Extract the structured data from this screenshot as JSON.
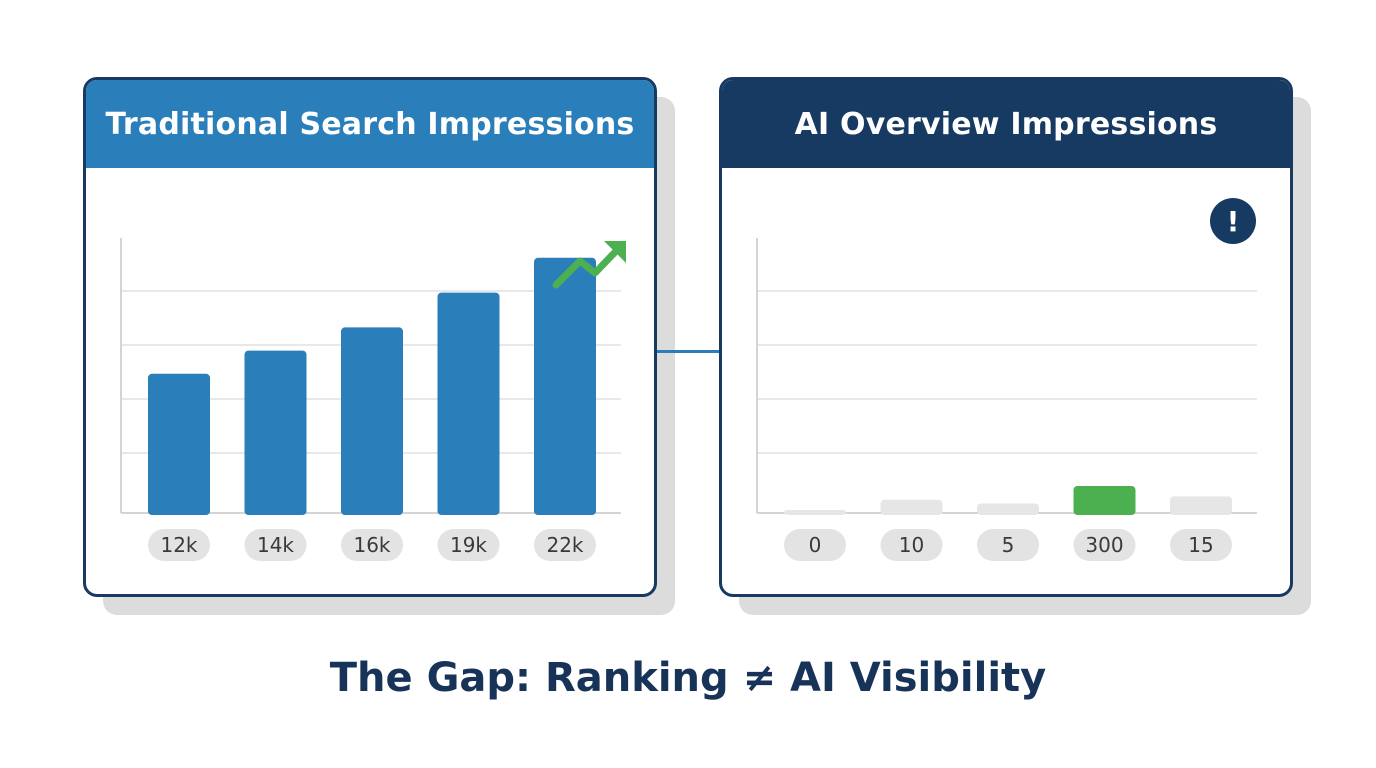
{
  "caption": "The Gap: Ranking ≠ AI Visibility",
  "colors": {
    "blue": "#2a7fba",
    "navy": "#173a63",
    "green": "#4caf50",
    "gray_bar": "#e6e6e6",
    "pill": "#e3e3e3",
    "grid": "#e0e0e0"
  },
  "icons": {
    "left_panel": "trend-up-arrow-icon",
    "right_panel": "exclamation-alert-icon"
  },
  "chart_data": [
    {
      "type": "bar",
      "title": "Traditional Search Impressions",
      "categories": [
        "12k",
        "14k",
        "16k",
        "19k",
        "22k"
      ],
      "values": [
        12,
        14,
        16,
        19,
        22
      ],
      "ylim": [
        0,
        25
      ],
      "grid": true,
      "bar_color": "#2a7fba",
      "header_color": "#2a7fba"
    },
    {
      "type": "bar",
      "title": "AI Overview Impressions",
      "categories": [
        "0",
        "10",
        "5",
        "300",
        "15"
      ],
      "values": [
        0,
        10,
        5,
        300,
        15
      ],
      "grid": true,
      "highlight_index": 3,
      "bar_color": "#e6e6e6",
      "highlight_color": "#4caf50",
      "header_color": "#173a63"
    }
  ]
}
